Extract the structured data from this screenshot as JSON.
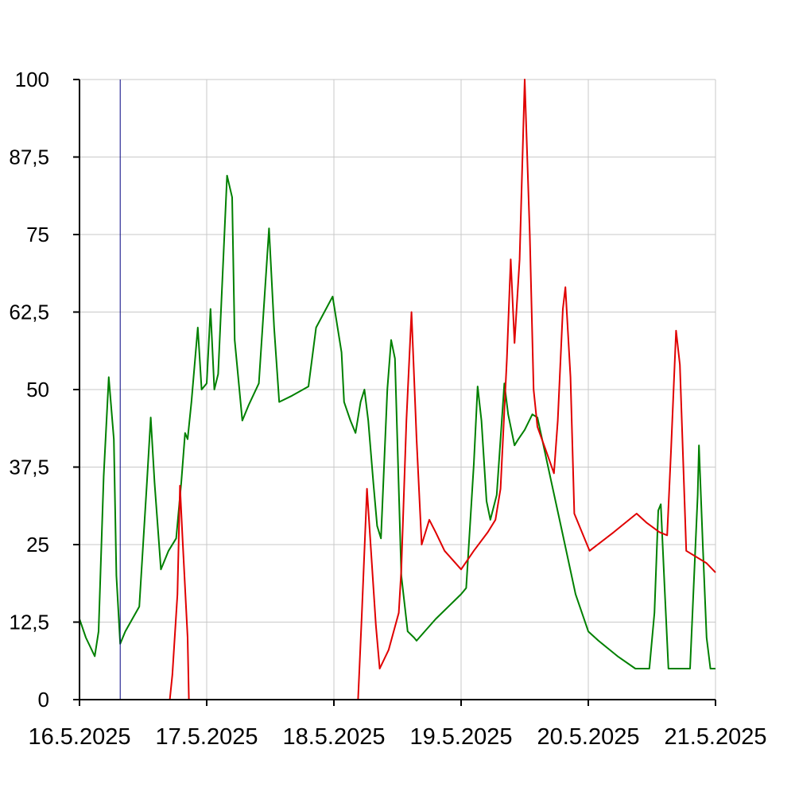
{
  "chart_data": {
    "type": "line",
    "title": "",
    "xlabel": "",
    "ylabel": "",
    "x_unit": "days",
    "xlim": [
      "16.5.2025",
      "21.5.2025"
    ],
    "ylim": [
      0,
      100
    ],
    "x_ticks": [
      "16.5.2025",
      "17.5.2025",
      "18.5.2025",
      "19.5.2025",
      "20.5.2025",
      "21.5.2025"
    ],
    "y_ticks": [
      0,
      12.5,
      25,
      37.5,
      50,
      62.5,
      75,
      87.5,
      100
    ],
    "y_tick_labels": [
      "0",
      "12,5",
      "25",
      "37,5",
      "50",
      "62,5",
      "75",
      "87,5",
      "100"
    ],
    "grid": true,
    "legend": "none",
    "colors": {
      "grid": "#c8c8c8",
      "axis": "#000000",
      "marker": "#000080"
    },
    "marker_line": {
      "x": 0.32
    },
    "series": [
      {
        "color": "#008000",
        "points": [
          [
            0.0,
            13.0
          ],
          [
            0.05,
            10.0
          ],
          [
            0.12,
            7.0
          ],
          [
            0.15,
            11.0
          ],
          [
            0.19,
            36.0
          ],
          [
            0.23,
            52.0
          ],
          [
            0.27,
            42.0
          ],
          [
            0.29,
            20.0
          ],
          [
            0.32,
            9.0
          ],
          [
            0.36,
            11.0
          ],
          [
            0.47,
            15.0
          ],
          [
            0.53,
            35.0
          ],
          [
            0.56,
            45.5
          ],
          [
            0.59,
            35.0
          ],
          [
            0.64,
            21.0
          ],
          [
            0.7,
            24.0
          ],
          [
            0.76,
            26.0
          ],
          [
            0.8,
            35.0
          ],
          [
            0.83,
            43.0
          ],
          [
            0.85,
            42.0
          ],
          [
            0.88,
            48.0
          ],
          [
            0.93,
            60.0
          ],
          [
            0.96,
            50.0
          ],
          [
            1.0,
            51.0
          ],
          [
            1.03,
            63.0
          ],
          [
            1.06,
            50.0
          ],
          [
            1.09,
            52.5
          ],
          [
            1.16,
            84.5
          ],
          [
            1.2,
            81.0
          ],
          [
            1.22,
            58.0
          ],
          [
            1.28,
            45.0
          ],
          [
            1.33,
            47.5
          ],
          [
            1.41,
            51.0
          ],
          [
            1.49,
            76.0
          ],
          [
            1.53,
            60.0
          ],
          [
            1.57,
            48.0
          ],
          [
            1.67,
            49.0
          ],
          [
            1.8,
            50.5
          ],
          [
            1.86,
            60.0
          ],
          [
            1.99,
            65.0
          ],
          [
            2.06,
            56.0
          ],
          [
            2.08,
            48.0
          ],
          [
            2.13,
            45.0
          ],
          [
            2.17,
            43.0
          ],
          [
            2.21,
            48.0
          ],
          [
            2.24,
            50.0
          ],
          [
            2.27,
            45.0
          ],
          [
            2.31,
            35.0
          ],
          [
            2.34,
            28.0
          ],
          [
            2.37,
            26.0
          ],
          [
            2.42,
            50.0
          ],
          [
            2.45,
            58.0
          ],
          [
            2.48,
            55.0
          ],
          [
            2.53,
            20.0
          ],
          [
            2.58,
            11.0
          ],
          [
            2.63,
            10.0
          ],
          [
            2.65,
            9.5
          ],
          [
            2.8,
            13.0
          ],
          [
            3.0,
            17.0
          ],
          [
            3.04,
            18.0
          ],
          [
            3.1,
            38.0
          ],
          [
            3.13,
            50.5
          ],
          [
            3.16,
            45.0
          ],
          [
            3.2,
            32.0
          ],
          [
            3.23,
            29.0
          ],
          [
            3.28,
            33.0
          ],
          [
            3.34,
            51.0
          ],
          [
            3.37,
            46.0
          ],
          [
            3.42,
            41.0
          ],
          [
            3.45,
            42.0
          ],
          [
            3.5,
            43.5
          ],
          [
            3.56,
            46.0
          ],
          [
            3.6,
            45.5
          ],
          [
            3.7,
            36.0
          ],
          [
            3.79,
            27.5
          ],
          [
            3.9,
            17.0
          ],
          [
            4.0,
            11.0
          ],
          [
            4.08,
            9.5
          ],
          [
            4.23,
            7.0
          ],
          [
            4.37,
            5.0
          ],
          [
            4.43,
            5.0
          ],
          [
            4.48,
            5.0
          ],
          [
            4.52,
            14.0
          ],
          [
            4.55,
            30.5
          ],
          [
            4.57,
            31.5
          ],
          [
            4.6,
            18.0
          ],
          [
            4.63,
            5.0
          ],
          [
            4.71,
            5.0
          ],
          [
            4.8,
            5.0
          ],
          [
            4.86,
            33.0
          ],
          [
            4.87,
            41.0
          ],
          [
            4.9,
            25.0
          ],
          [
            4.93,
            10.0
          ],
          [
            4.96,
            5.0
          ],
          [
            5.0,
            5.0
          ]
        ]
      },
      {
        "color": "#e00000",
        "points": [
          [
            0.0,
            0.0
          ],
          [
            0.71,
            0.0
          ],
          [
            0.73,
            4.0
          ],
          [
            0.77,
            17.0
          ],
          [
            0.79,
            34.5
          ],
          [
            0.81,
            26.0
          ],
          [
            0.85,
            10.0
          ],
          [
            0.86,
            0.0
          ],
          [
            2.19,
            0.0
          ],
          [
            2.22,
            14.0
          ],
          [
            2.26,
            34.0
          ],
          [
            2.33,
            12.0
          ],
          [
            2.36,
            5.0
          ],
          [
            2.43,
            8.0
          ],
          [
            2.51,
            14.0
          ],
          [
            2.53,
            21.0
          ],
          [
            2.57,
            45.0
          ],
          [
            2.61,
            62.5
          ],
          [
            2.65,
            42.0
          ],
          [
            2.69,
            25.0
          ],
          [
            2.75,
            29.0
          ],
          [
            2.8,
            27.0
          ],
          [
            2.87,
            24.0
          ],
          [
            3.0,
            21.0
          ],
          [
            3.1,
            24.0
          ],
          [
            3.21,
            27.0
          ],
          [
            3.27,
            29.0
          ],
          [
            3.31,
            34.0
          ],
          [
            3.36,
            55.0
          ],
          [
            3.39,
            71.0
          ],
          [
            3.42,
            57.5
          ],
          [
            3.46,
            71.0
          ],
          [
            3.5,
            100.0
          ],
          [
            3.54,
            75.0
          ],
          [
            3.57,
            50.0
          ],
          [
            3.6,
            44.0
          ],
          [
            3.67,
            40.0
          ],
          [
            3.73,
            36.5
          ],
          [
            3.76,
            45.0
          ],
          [
            3.8,
            63.0
          ],
          [
            3.82,
            66.5
          ],
          [
            3.86,
            52.0
          ],
          [
            3.89,
            30.0
          ],
          [
            3.93,
            28.0
          ],
          [
            4.01,
            24.0
          ],
          [
            4.2,
            27.0
          ],
          [
            4.38,
            30.0
          ],
          [
            4.46,
            28.5
          ],
          [
            4.56,
            27.0
          ],
          [
            4.62,
            26.5
          ],
          [
            4.65,
            40.0
          ],
          [
            4.69,
            59.5
          ],
          [
            4.72,
            54.0
          ],
          [
            4.77,
            24.0
          ],
          [
            4.93,
            22.0
          ],
          [
            5.0,
            20.5
          ]
        ]
      }
    ]
  }
}
